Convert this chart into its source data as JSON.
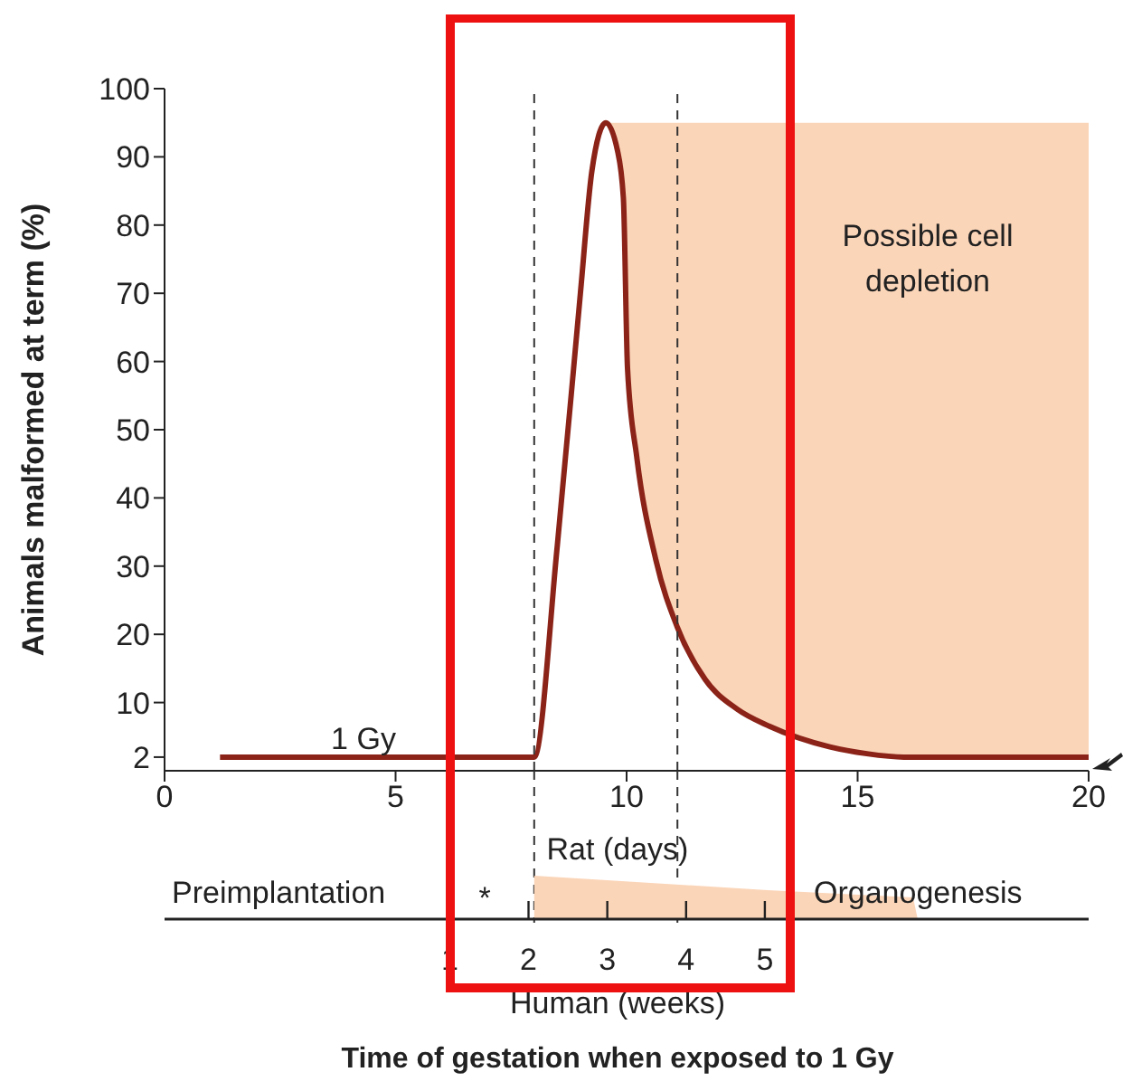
{
  "chart_data": {
    "type": "line",
    "title": "Time of gestation when exposed to 1 Gy",
    "xlabel": "Rat (days)",
    "ylabel": "Animals malformed at term (%)",
    "x2label": "Human (weeks)",
    "xlim": [
      0,
      20
    ],
    "xticks": [
      0,
      5,
      10,
      15,
      20
    ],
    "ylim": [
      0,
      100
    ],
    "yticks": [
      2,
      10,
      20,
      30,
      40,
      50,
      60,
      70,
      80,
      90,
      100
    ],
    "x2lim": [
      -2.62,
      9.11
    ],
    "x2ticks": [
      1,
      2,
      3,
      4,
      5
    ],
    "marker": "none",
    "line_style": "solid",
    "series": [
      {
        "color": "#8b2318",
        "x": [
          1.2,
          8.0,
          8.5,
          9.0,
          9.25,
          9.55,
          9.8,
          9.93,
          10.02,
          10.22,
          10.63,
          11.1,
          11.7,
          12.4,
          13.1,
          14.4,
          15.2,
          16.0,
          20
        ],
        "values": [
          2,
          2,
          33,
          70,
          88,
          95,
          91,
          84,
          59,
          46,
          31,
          21,
          13.4,
          9,
          6.5,
          3.5,
          2.5,
          2,
          2
        ],
        "lower": [
          null,
          null,
          null,
          null,
          null,
          95,
          91,
          84,
          59,
          46,
          31,
          21,
          13.4,
          9,
          6.5,
          3.5,
          2.5,
          2,
          2
        ],
        "upper": [
          null,
          null,
          null,
          null,
          null,
          95,
          95,
          95,
          95,
          95,
          95,
          95,
          95,
          95,
          95,
          95,
          95,
          95,
          95
        ]
      }
    ],
    "ref_lines": [
      {
        "axis": "x",
        "value": 8,
        "line_style": "dashed",
        "color": "#333333"
      },
      {
        "axis": "x",
        "value": 11.1,
        "line_style": "dashed",
        "color": "#333333"
      }
    ],
    "annotations": [
      "1 Gy",
      "Possible cell depletion",
      "Preimplantation",
      "*",
      "Organogenesis"
    ]
  }
}
